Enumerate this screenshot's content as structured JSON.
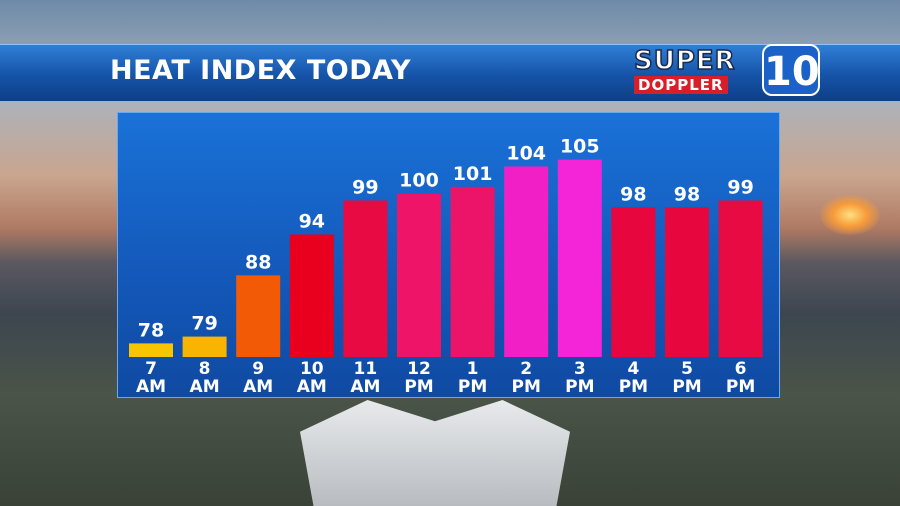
{
  "header": {
    "title": "HEAT INDEX TODAY"
  },
  "logo": {
    "line1": "SUPER",
    "line2": "DOPPLER",
    "number": "10"
  },
  "chart_data": {
    "type": "bar",
    "categories": [
      "7 AM",
      "8 AM",
      "9 AM",
      "10 AM",
      "11 AM",
      "12 PM",
      "1 PM",
      "2 PM",
      "3 PM",
      "4 PM",
      "5 PM",
      "6 PM"
    ],
    "values": [
      78,
      79,
      88,
      94,
      99,
      100,
      101,
      104,
      105,
      98,
      98,
      99
    ],
    "colors": [
      "#f7c600",
      "#f7b400",
      "#f25a06",
      "#e8001e",
      "#e80a42",
      "#ee1468",
      "#ec1468",
      "#f020c6",
      "#f424d8",
      "#e8063e",
      "#e8063e",
      "#e80a42"
    ],
    "ylim": [
      76,
      112
    ]
  }
}
